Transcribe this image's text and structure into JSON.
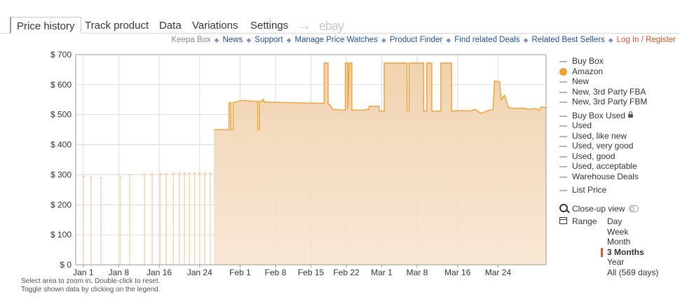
{
  "tabs": [
    {
      "label": "Price history",
      "active": true
    },
    {
      "label": "Track product"
    },
    {
      "label": "Data"
    },
    {
      "label": "Variations"
    },
    {
      "label": "Settings"
    }
  ],
  "tab_arrow": "→",
  "ebay_label": "ebay",
  "links": [
    {
      "label": "Keepa Box",
      "style": "muted"
    },
    {
      "label": "News"
    },
    {
      "label": "Support"
    },
    {
      "label": "Manage Price Watches"
    },
    {
      "label": "Product Finder"
    },
    {
      "label": "Find related Deals"
    },
    {
      "label": "Related Best Sellers"
    },
    {
      "label": "Log In / Register",
      "style": "red"
    }
  ],
  "colors": {
    "amazon_line": "#f0a030",
    "amazon_fill": "#f0d3b0",
    "frame": "#999999",
    "grid": "#dcdcdc",
    "muted_series": "#b5b5b5"
  },
  "legend": [
    {
      "label": "Buy Box"
    },
    {
      "label": "Amazon",
      "active": true
    },
    {
      "label": "New"
    },
    {
      "label": "New, 3rd Party FBA"
    },
    {
      "label": "New, 3rd Party FBM"
    },
    {
      "label": "Buy Box Used",
      "locked": true
    },
    {
      "label": "Used"
    },
    {
      "label": "Used, like new"
    },
    {
      "label": "Used, very good"
    },
    {
      "label": "Used, good"
    },
    {
      "label": "Used, acceptable"
    },
    {
      "label": "Warehouse Deals"
    },
    {
      "label": "List Price"
    }
  ],
  "closeup_label": "Close-up view",
  "range": {
    "label": "Range",
    "options": [
      "Day",
      "Week",
      "Month",
      "3 Months",
      "Year",
      "All (569 days)"
    ],
    "selected": "3 Months"
  },
  "hints": [
    "Select area to zoom in. Double-click to reset.",
    "Toggle shown data by clicking on the legend."
  ],
  "chart_data": {
    "type": "area",
    "series_name": "Amazon",
    "x_unit": "day offset from Jan 1",
    "ylim": [
      0,
      700
    ],
    "xlim": [
      -1.5,
      91.5
    ],
    "yticks": [
      {
        "v": 0,
        "label": "$ 0"
      },
      {
        "v": 100,
        "label": "$ 100"
      },
      {
        "v": 200,
        "label": "$ 200"
      },
      {
        "v": 300,
        "label": "$ 300"
      },
      {
        "v": 400,
        "label": "$ 400"
      },
      {
        "v": 500,
        "label": "$ 500"
      },
      {
        "v": 600,
        "label": "$ 600"
      },
      {
        "v": 700,
        "label": "$ 700"
      }
    ],
    "xticks": [
      {
        "v": 0,
        "label": "Jan 1"
      },
      {
        "v": 7,
        "label": "Jan 8"
      },
      {
        "v": 15,
        "label": "Jan 16"
      },
      {
        "v": 23,
        "label": "Jan 24"
      },
      {
        "v": 31,
        "label": "Feb 1"
      },
      {
        "v": 38,
        "label": "Feb 8"
      },
      {
        "v": 45,
        "label": "Feb 15"
      },
      {
        "v": 52,
        "label": "Feb 22"
      },
      {
        "v": 59,
        "label": "Mar 1"
      },
      {
        "v": 66,
        "label": "Mar 8"
      },
      {
        "v": 74,
        "label": "Mar 16"
      },
      {
        "v": 82,
        "label": "Mar 24"
      }
    ],
    "grid": true,
    "legend_position": "right",
    "sparse_points": [
      [
        0,
        295
      ],
      [
        1.5,
        292
      ],
      [
        3.5,
        290
      ],
      [
        7.3,
        292
      ],
      [
        9.2,
        300
      ],
      [
        12.1,
        302
      ],
      [
        13.6,
        303
      ],
      [
        15.2,
        303
      ],
      [
        16.4,
        304
      ],
      [
        17.8,
        305
      ],
      [
        19,
        306
      ],
      [
        20,
        306
      ],
      [
        21,
        306
      ],
      [
        22,
        306
      ],
      [
        23,
        306
      ],
      [
        24,
        306
      ],
      [
        25.1,
        306
      ]
    ],
    "points": [
      [
        25.8,
        450
      ],
      [
        28.8,
        450
      ],
      [
        28.8,
        540
      ],
      [
        29.2,
        540
      ],
      [
        29.2,
        450
      ],
      [
        29.6,
        450
      ],
      [
        29.6,
        540
      ],
      [
        30.8,
        545
      ],
      [
        31.6,
        548
      ],
      [
        32.4,
        546
      ],
      [
        33.4,
        545
      ],
      [
        34.5,
        545
      ],
      [
        34.5,
        450
      ],
      [
        34.8,
        450
      ],
      [
        34.8,
        545
      ],
      [
        35.4,
        544
      ],
      [
        35.4,
        550
      ],
      [
        35.7,
        550
      ],
      [
        35.7,
        542
      ],
      [
        41,
        540
      ],
      [
        47,
        538
      ],
      [
        47.6,
        538
      ],
      [
        47.6,
        672
      ],
      [
        48.4,
        672
      ],
      [
        48.4,
        535
      ],
      [
        48.8,
        532
      ],
      [
        49.3,
        518
      ],
      [
        51.8,
        515
      ],
      [
        51.8,
        672
      ],
      [
        52.3,
        672
      ],
      [
        52.3,
        518
      ],
      [
        52.6,
        672
      ],
      [
        53.1,
        672
      ],
      [
        53.1,
        515
      ],
      [
        55.5,
        516
      ],
      [
        56.5,
        518
      ],
      [
        56.5,
        528
      ],
      [
        58.5,
        528
      ],
      [
        58.5,
        512
      ],
      [
        59.5,
        512
      ],
      [
        59.5,
        672
      ],
      [
        64,
        672
      ],
      [
        64,
        512
      ],
      [
        64.4,
        512
      ],
      [
        64.4,
        672
      ],
      [
        67.3,
        672
      ],
      [
        67.3,
        512
      ],
      [
        67.9,
        512
      ],
      [
        67.9,
        672
      ],
      [
        68.9,
        672
      ],
      [
        68.9,
        512
      ],
      [
        70.7,
        512
      ],
      [
        70.7,
        672
      ],
      [
        72.8,
        672
      ],
      [
        72.8,
        512
      ],
      [
        75,
        514
      ],
      [
        76.5,
        512
      ],
      [
        77.5,
        518
      ],
      [
        78.5,
        505
      ],
      [
        79.5,
        510
      ],
      [
        80.2,
        515
      ],
      [
        81,
        516
      ],
      [
        81.3,
        612
      ],
      [
        82.3,
        610
      ],
      [
        82.6,
        550
      ],
      [
        83.3,
        565
      ],
      [
        84,
        525
      ],
      [
        85,
        520
      ],
      [
        86,
        522
      ],
      [
        87,
        522
      ],
      [
        88,
        518
      ],
      [
        89.5,
        520
      ],
      [
        90.2,
        515
      ],
      [
        90.5,
        526
      ],
      [
        91.5,
        524
      ]
    ]
  }
}
